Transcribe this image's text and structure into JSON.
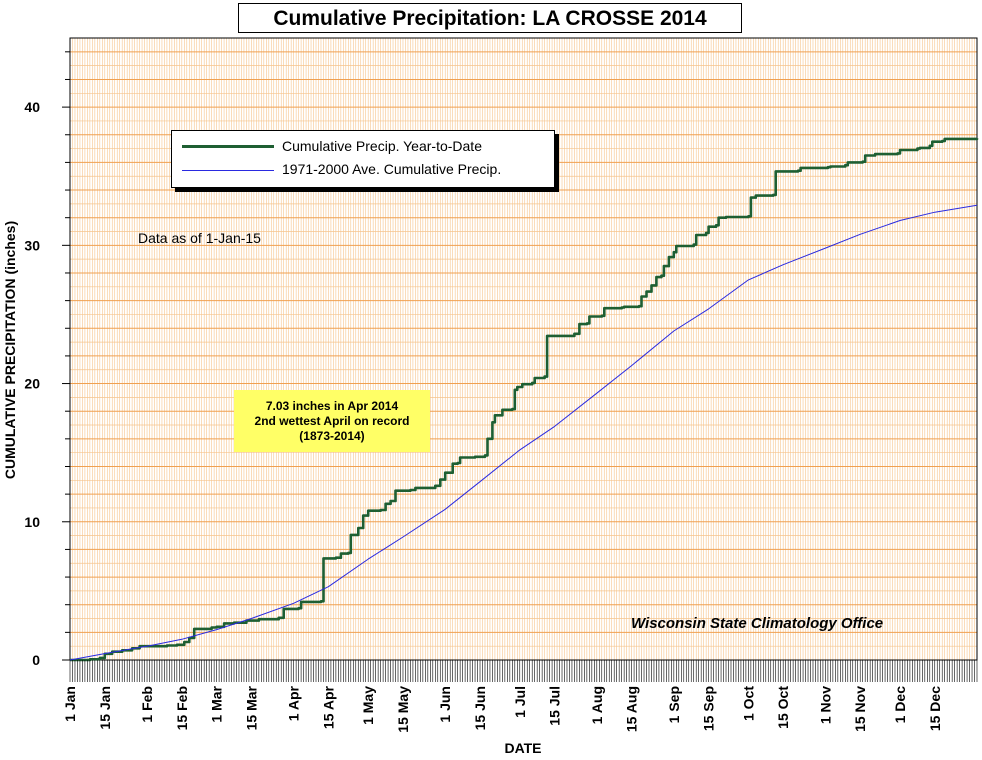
{
  "chart_data": {
    "type": "line",
    "title": "Cumulative Precipitation: LA CROSSE 2014",
    "xlabel": "DATE",
    "ylabel": "CUMULATIVE PRECIPITATION (inches)",
    "ylim": [
      0,
      45
    ],
    "y_ticks": [
      0,
      10,
      20,
      30,
      40
    ],
    "xlim": [
      0,
      365
    ],
    "x_ticks": [
      {
        "label": "1 Jan",
        "day": 0
      },
      {
        "label": "15 Jan",
        "day": 14
      },
      {
        "label": "1 Feb",
        "day": 31
      },
      {
        "label": "15 Feb",
        "day": 45
      },
      {
        "label": "1 Mar",
        "day": 59
      },
      {
        "label": "15 Mar",
        "day": 73
      },
      {
        "label": "1 Apr",
        "day": 90
      },
      {
        "label": "15 Apr",
        "day": 104
      },
      {
        "label": "1 May",
        "day": 120
      },
      {
        "label": "15 May",
        "day": 134
      },
      {
        "label": "1 Jun",
        "day": 151
      },
      {
        "label": "15 Jun",
        "day": 165
      },
      {
        "label": "1 Jul",
        "day": 181
      },
      {
        "label": "15 Jul",
        "day": 195
      },
      {
        "label": "1 Aug",
        "day": 212
      },
      {
        "label": "15 Aug",
        "day": 226
      },
      {
        "label": "1 Sep",
        "day": 243
      },
      {
        "label": "15 Sep",
        "day": 257
      },
      {
        "label": "1 Oct",
        "day": 273
      },
      {
        "label": "15 Oct",
        "day": 287
      },
      {
        "label": "1 Nov",
        "day": 304
      },
      {
        "label": "15 Nov",
        "day": 318
      },
      {
        "label": "1 Dec",
        "day": 334
      },
      {
        "label": "15 Dec",
        "day": 348
      }
    ],
    "grid": true,
    "legend_position": "top-left",
    "series": [
      {
        "name": "Cumulative Precip. Year-to-Date",
        "color": "#1e5f32",
        "step": true,
        "points": [
          [
            0,
            0
          ],
          [
            8,
            0.05
          ],
          [
            12,
            0.15
          ],
          [
            14,
            0.45
          ],
          [
            17,
            0.6
          ],
          [
            21,
            0.7
          ],
          [
            25,
            0.85
          ],
          [
            28,
            1.0
          ],
          [
            33,
            1.0
          ],
          [
            39,
            1.05
          ],
          [
            43,
            1.1
          ],
          [
            46,
            1.3
          ],
          [
            48,
            1.6
          ],
          [
            50,
            2.25
          ],
          [
            57,
            2.35
          ],
          [
            59,
            2.4
          ],
          [
            62,
            2.65
          ],
          [
            66,
            2.7
          ],
          [
            71,
            2.85
          ],
          [
            76,
            2.95
          ],
          [
            84,
            3.05
          ],
          [
            86,
            3.7
          ],
          [
            92,
            3.75
          ],
          [
            93,
            4.2
          ],
          [
            101,
            4.25
          ],
          [
            102,
            7.35
          ],
          [
            107,
            7.4
          ],
          [
            109,
            7.7
          ],
          [
            112,
            7.75
          ],
          [
            113,
            9.05
          ],
          [
            116,
            9.55
          ],
          [
            118,
            10.45
          ],
          [
            120,
            10.8
          ],
          [
            125,
            10.85
          ],
          [
            127,
            11.3
          ],
          [
            129,
            11.5
          ],
          [
            131,
            12.25
          ],
          [
            137,
            12.3
          ],
          [
            139,
            12.45
          ],
          [
            147,
            12.6
          ],
          [
            149,
            13.05
          ],
          [
            151,
            13.55
          ],
          [
            154,
            14.2
          ],
          [
            156,
            14.25
          ],
          [
            157,
            14.65
          ],
          [
            163,
            14.7
          ],
          [
            167,
            14.8
          ],
          [
            168,
            16.0
          ],
          [
            170,
            17.2
          ],
          [
            171,
            17.7
          ],
          [
            174,
            18.1
          ],
          [
            178,
            18.15
          ],
          [
            179,
            19.55
          ],
          [
            180,
            19.75
          ],
          [
            182,
            19.95
          ],
          [
            186,
            20.05
          ],
          [
            187,
            20.4
          ],
          [
            191,
            20.5
          ],
          [
            192,
            23.45
          ],
          [
            203,
            23.6
          ],
          [
            205,
            24.3
          ],
          [
            208,
            24.35
          ],
          [
            209,
            24.85
          ],
          [
            214,
            24.9
          ],
          [
            215,
            25.45
          ],
          [
            222,
            25.5
          ],
          [
            223,
            25.55
          ],
          [
            229,
            25.6
          ],
          [
            230,
            26.3
          ],
          [
            232,
            26.65
          ],
          [
            234,
            27.1
          ],
          [
            236,
            27.7
          ],
          [
            238,
            27.8
          ],
          [
            239,
            28.5
          ],
          [
            241,
            29.15
          ],
          [
            243,
            29.5
          ],
          [
            244,
            29.95
          ],
          [
            251,
            30.05
          ],
          [
            252,
            30.75
          ],
          [
            256,
            30.9
          ],
          [
            257,
            31.35
          ],
          [
            260,
            31.45
          ],
          [
            261,
            32.0
          ],
          [
            264,
            32.05
          ],
          [
            273,
            32.1
          ],
          [
            274,
            33.45
          ],
          [
            276,
            33.6
          ],
          [
            283,
            33.65
          ],
          [
            284,
            35.35
          ],
          [
            293,
            35.4
          ],
          [
            294,
            35.6
          ],
          [
            305,
            35.65
          ],
          [
            306,
            35.7
          ],
          [
            312,
            35.8
          ],
          [
            313,
            36.0
          ],
          [
            319,
            36.05
          ],
          [
            320,
            36.5
          ],
          [
            324,
            36.6
          ],
          [
            333,
            36.65
          ],
          [
            334,
            36.9
          ],
          [
            341,
            37.0
          ],
          [
            342,
            37.05
          ],
          [
            346,
            37.2
          ],
          [
            347,
            37.5
          ],
          [
            351,
            37.55
          ],
          [
            352,
            37.7
          ],
          [
            365,
            37.75
          ]
        ]
      },
      {
        "name": "1971-2000 Ave. Cumulative Precip.",
        "color": "#2a2ae0",
        "step": false,
        "points": [
          [
            0,
            0
          ],
          [
            15,
            0.5
          ],
          [
            31,
            1.0
          ],
          [
            45,
            1.5
          ],
          [
            59,
            2.2
          ],
          [
            73,
            3.0
          ],
          [
            90,
            4.1
          ],
          [
            104,
            5.3
          ],
          [
            120,
            7.3
          ],
          [
            134,
            8.9
          ],
          [
            151,
            10.9
          ],
          [
            165,
            12.9
          ],
          [
            181,
            15.2
          ],
          [
            195,
            16.9
          ],
          [
            212,
            19.3
          ],
          [
            226,
            21.3
          ],
          [
            243,
            23.8
          ],
          [
            257,
            25.4
          ],
          [
            273,
            27.5
          ],
          [
            287,
            28.6
          ],
          [
            304,
            29.8
          ],
          [
            318,
            30.8
          ],
          [
            334,
            31.8
          ],
          [
            348,
            32.4
          ],
          [
            365,
            32.9
          ]
        ]
      }
    ],
    "annotations": {
      "data_as_of": "Data as of 1-Jan-15",
      "april_note_line1": "7.03 inches in Apr 2014",
      "april_note_line2": "2nd wettest April on record",
      "april_note_line3": "(1873-2014)",
      "credit": "Wisconsin State Climatology Office"
    }
  },
  "colors": {
    "major_grid": "#f0a050",
    "minor_grid": "#f6c48c",
    "plot_background": "#ffffff"
  }
}
